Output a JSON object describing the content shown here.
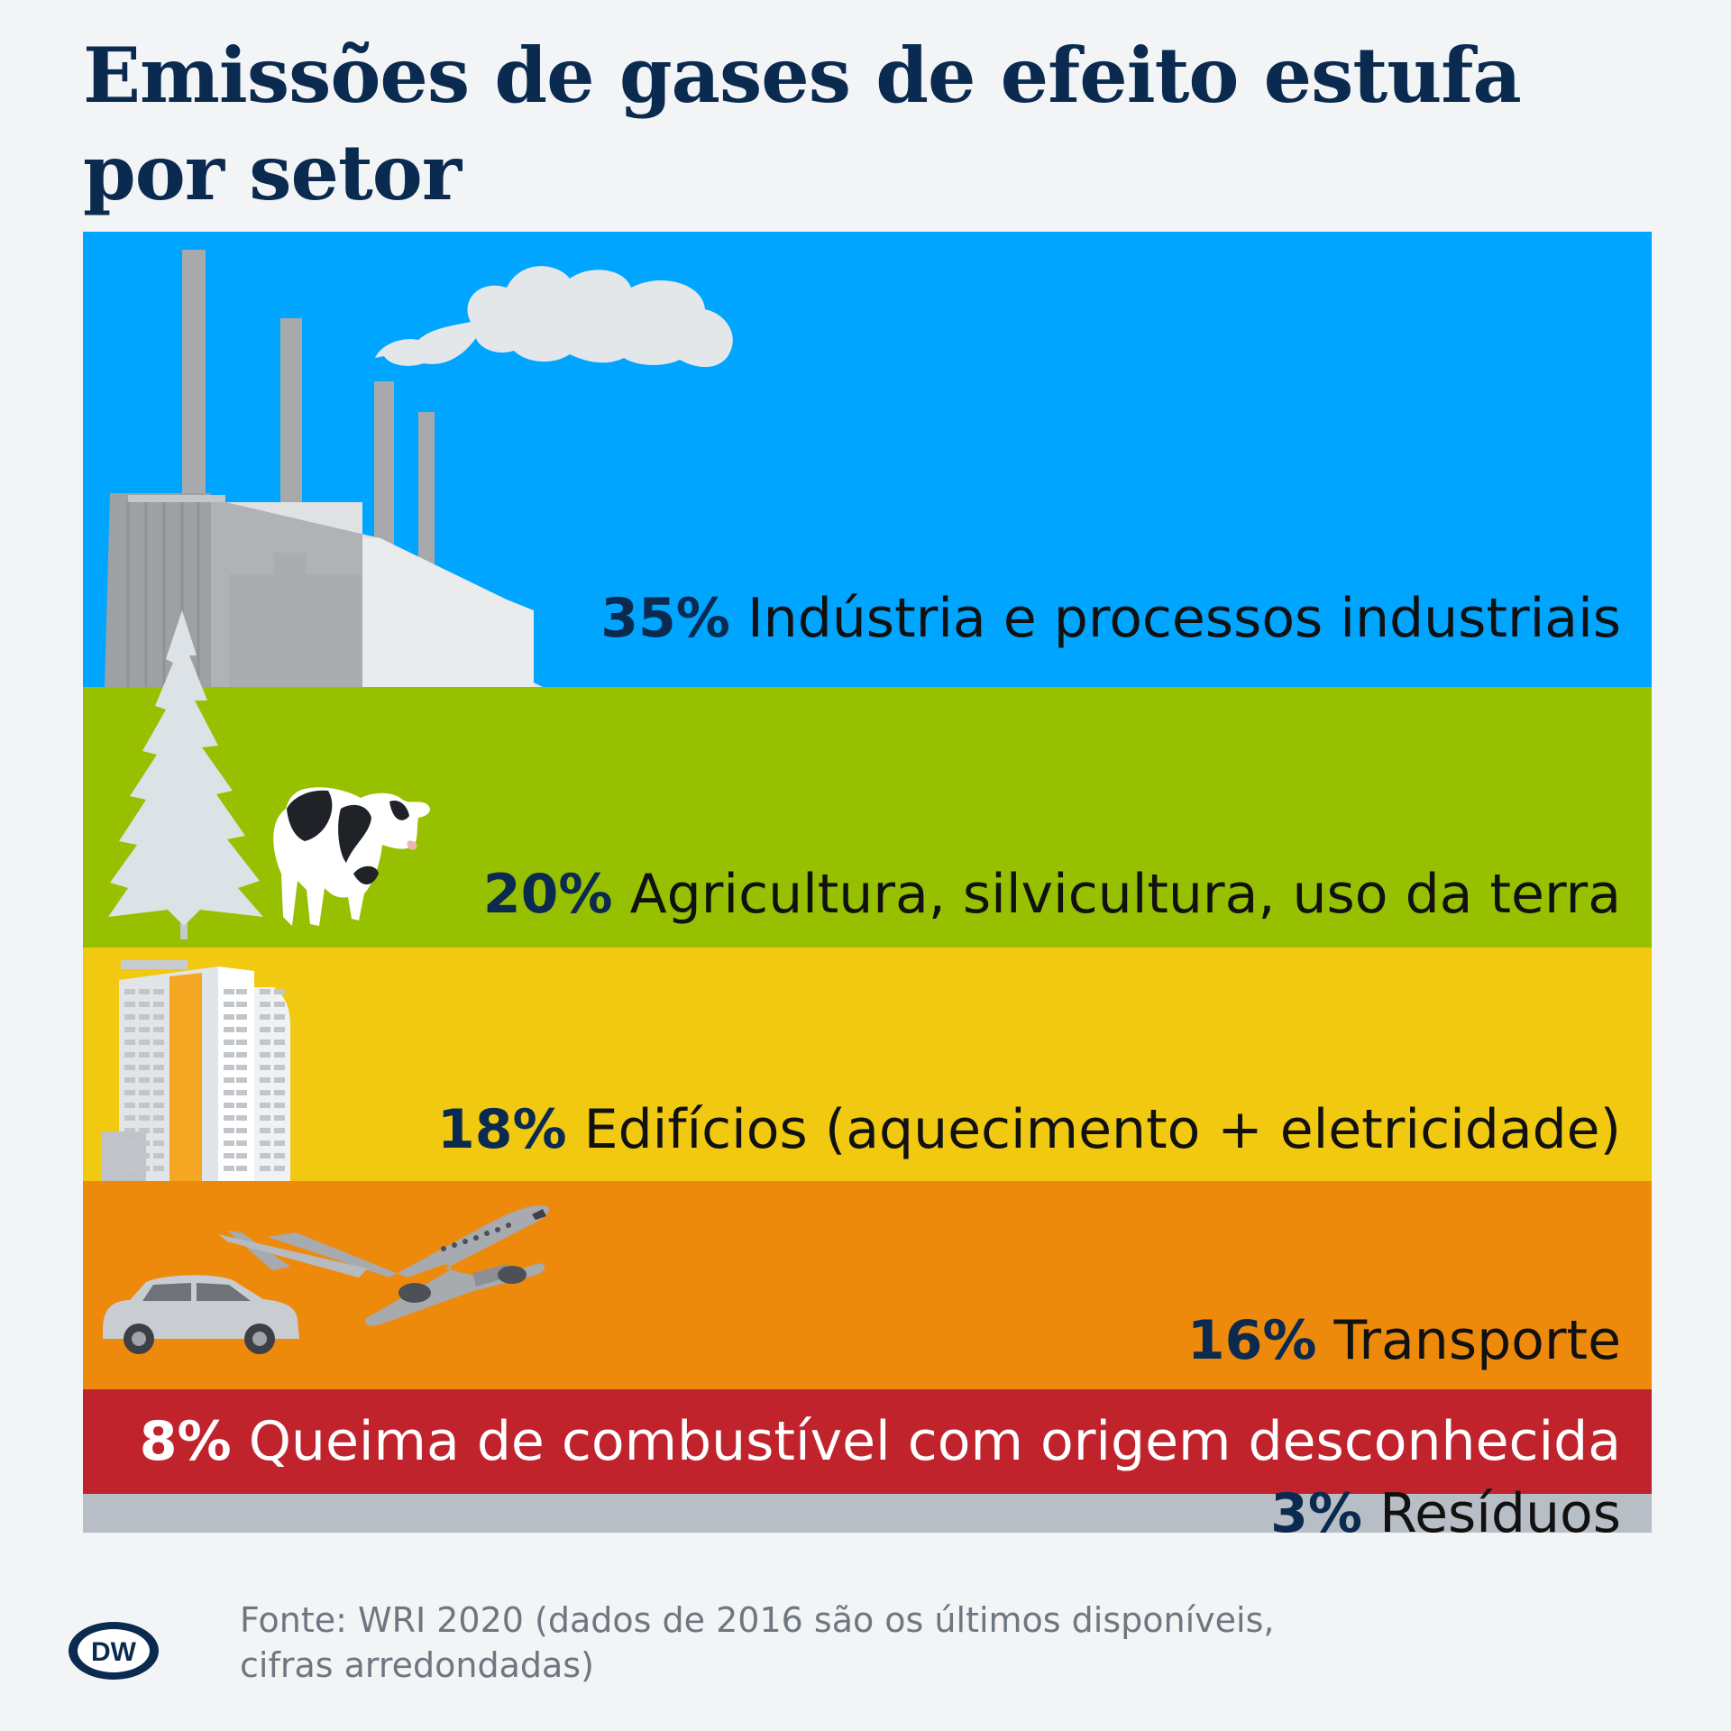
{
  "title_lines": [
    "Emissões de gases de efeito estufa",
    "por setor"
  ],
  "chart_data": {
    "type": "stacked-bar",
    "title": "Emissões de gases de efeito estufa por setor",
    "unit": "%",
    "total": 100,
    "categories": [
      {
        "label": "Indústria e processos industriais",
        "value": 35,
        "value_label": "35%",
        "color": "#00a5ff"
      },
      {
        "label": "Agricultura, silvicultura, uso da terra",
        "value": 20,
        "value_label": "20%",
        "color": "#97c000"
      },
      {
        "label": "Edifícios (aquecimento + eletricidade)",
        "value": 18,
        "value_label": "18%",
        "color": "#f1c911"
      },
      {
        "label": "Transporte",
        "value": 16,
        "value_label": "16%",
        "color": "#ee8a0b"
      },
      {
        "label": "Queima de combustível com origem desconhecida",
        "value": 8,
        "value_label": "8%",
        "color": "#c1232d"
      },
      {
        "label": "Resíduos",
        "value": 3,
        "value_label": "3%",
        "color": "#b7bec6"
      }
    ]
  },
  "source_lines": [
    "Fonte: WRI 2020 (dados de 2016 são os últimos disponíveis,",
    "cifras arredondadas)"
  ],
  "logo": {
    "text": "DW",
    "icon": "dw-logo-icon"
  }
}
